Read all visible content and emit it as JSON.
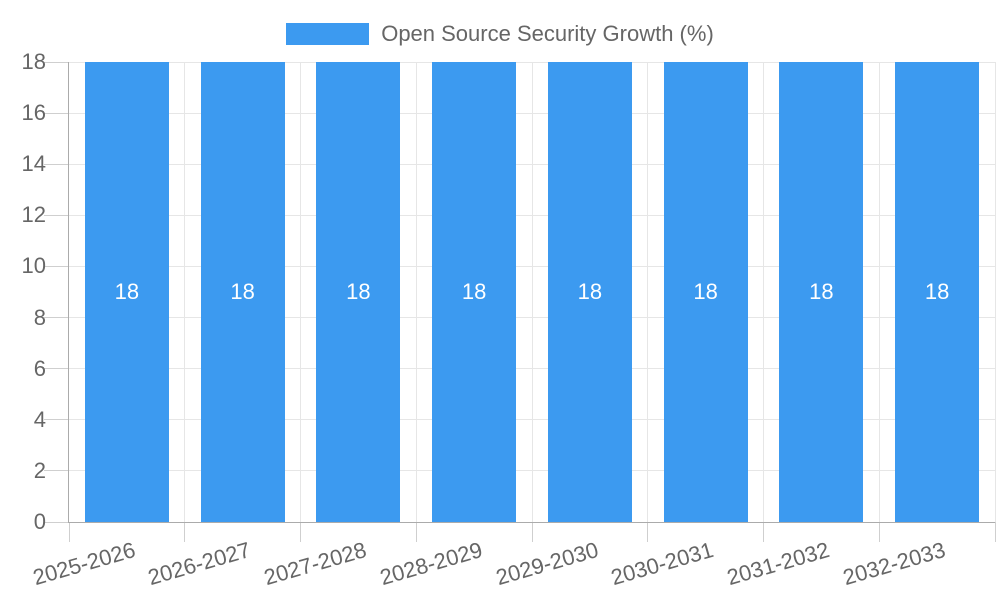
{
  "chart_data": {
    "type": "bar",
    "title": "",
    "legend_position": "top",
    "legend_label": "Open Source Security Growth (%)",
    "categories": [
      "2025-2026",
      "2026-2027",
      "2027-2028",
      "2028-2029",
      "2029-2030",
      "2030-2031",
      "2031-2032",
      "2032-2033"
    ],
    "series": [
      {
        "name": "Open Source Security Growth (%)",
        "values": [
          18,
          18,
          18,
          18,
          18,
          18,
          18,
          18
        ]
      }
    ],
    "bar_value_labels": [
      "18",
      "18",
      "18",
      "18",
      "18",
      "18",
      "18",
      "18"
    ],
    "xlabel": "",
    "ylabel": "",
    "ylim": [
      0,
      18
    ],
    "yticks": [
      0,
      2,
      4,
      6,
      8,
      10,
      12,
      14,
      16,
      18
    ],
    "grid": true,
    "colors": {
      "bar": "#3C9AF0",
      "bar_label": "#FFFFFF",
      "axis_text": "#666666",
      "gridline": "#E6E6E6",
      "tick_mark": "#CFCFCF",
      "axis_line": "#ABABAB",
      "background": "#FFFFFF"
    }
  }
}
